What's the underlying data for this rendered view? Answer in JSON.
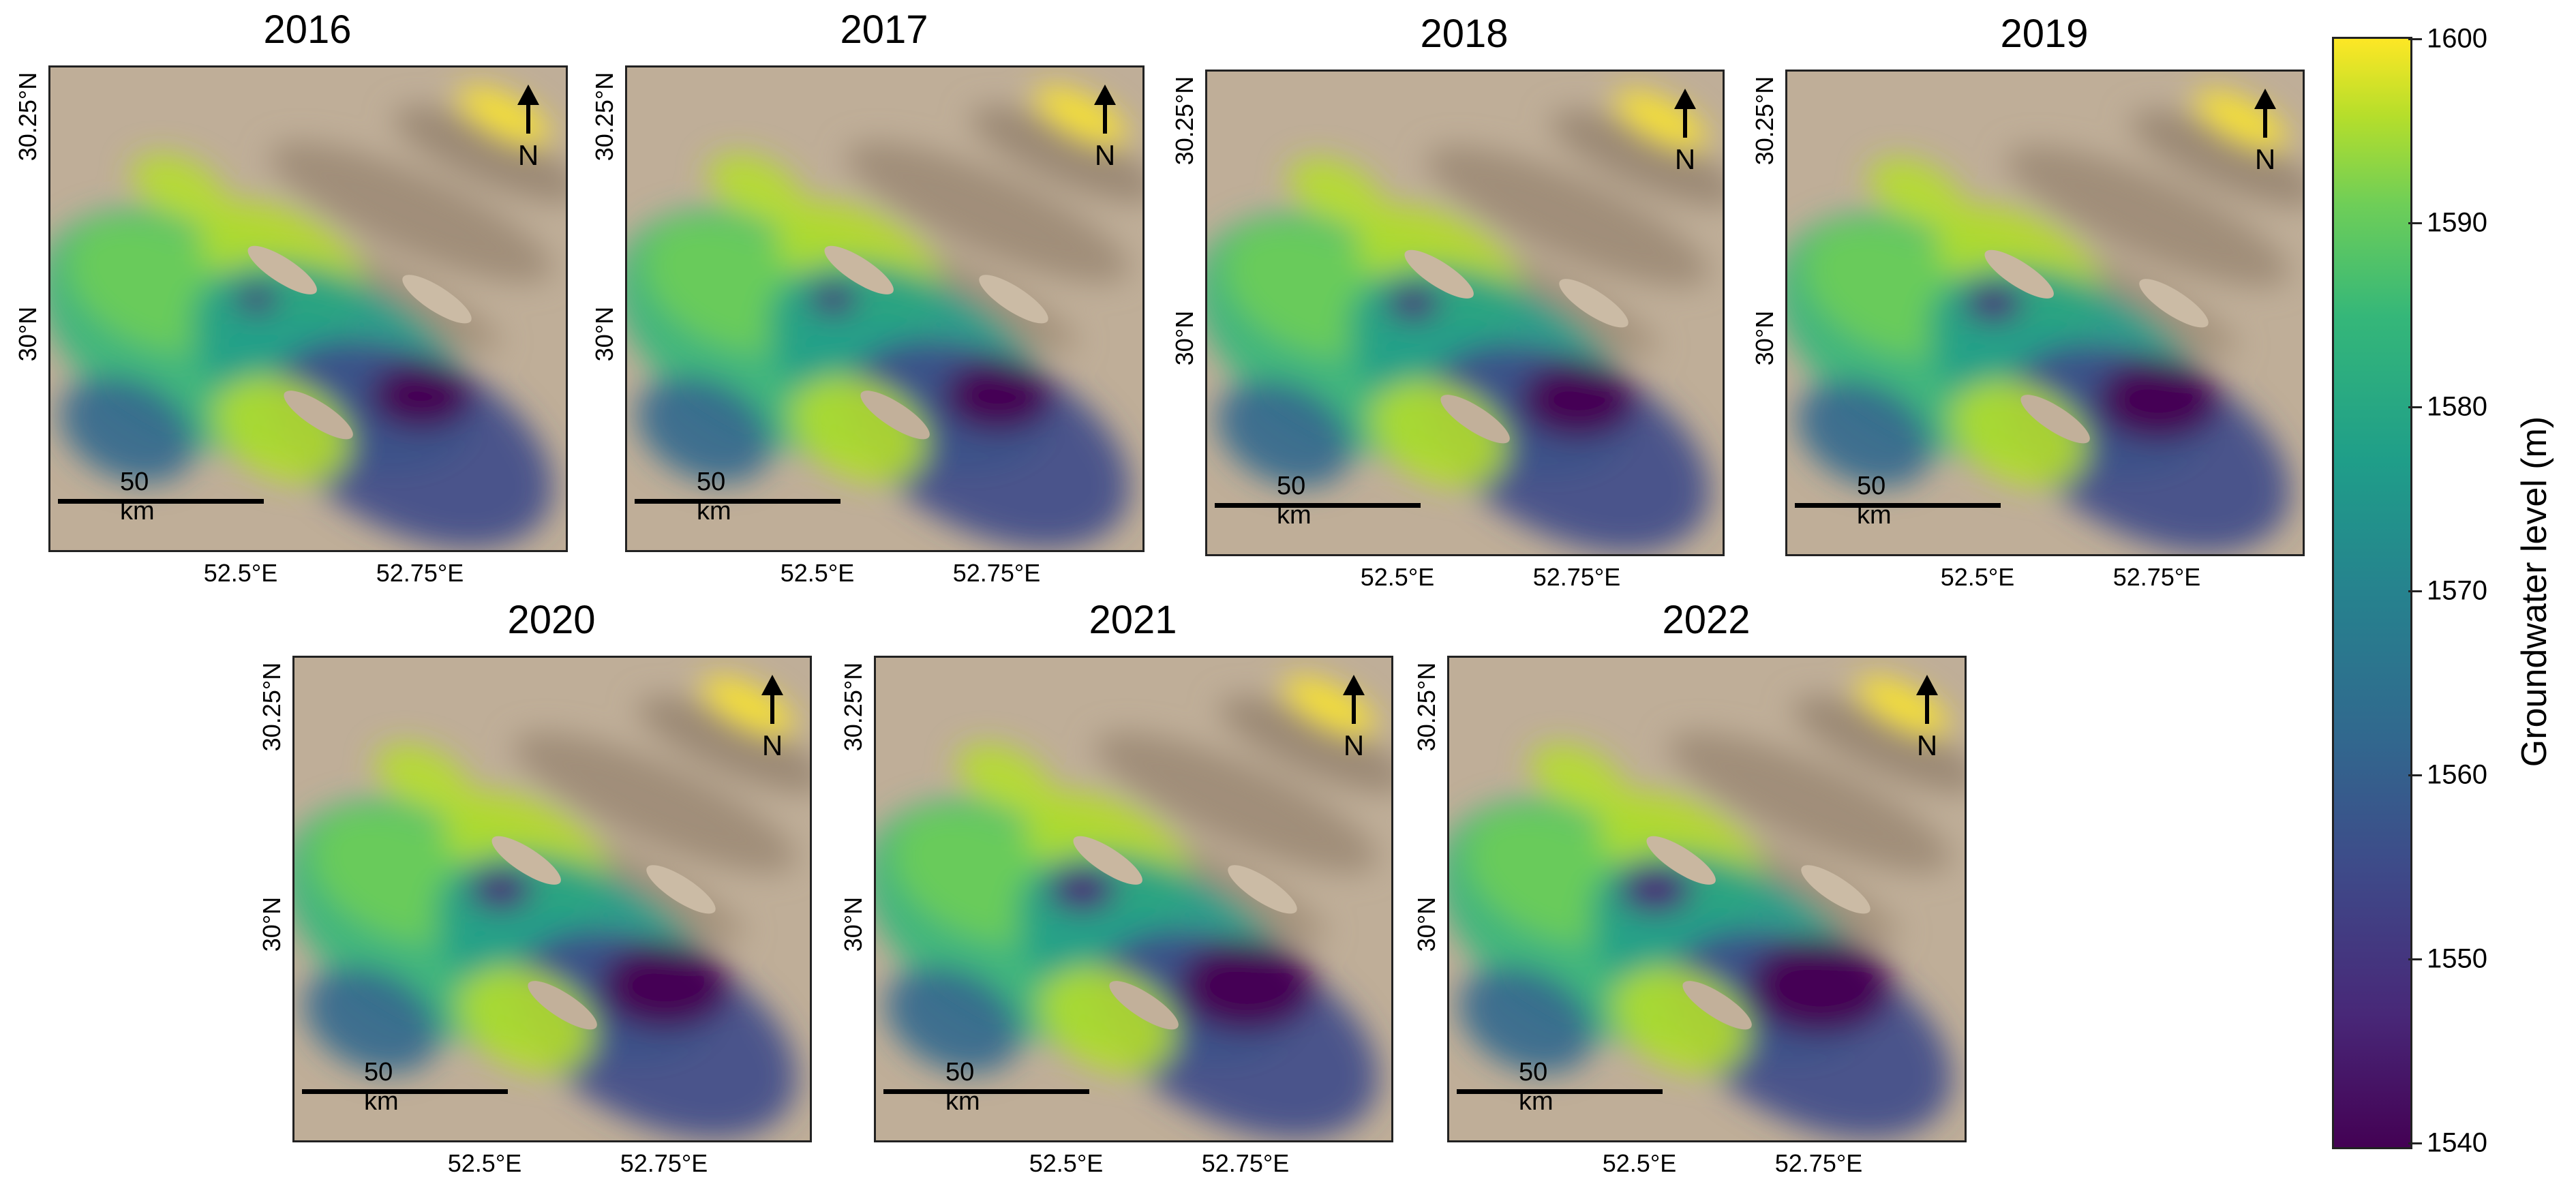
{
  "panels": [
    {
      "year": "2016"
    },
    {
      "year": "2017"
    },
    {
      "year": "2018"
    },
    {
      "year": "2019"
    },
    {
      "year": "2020"
    },
    {
      "year": "2021"
    },
    {
      "year": "2022"
    }
  ],
  "latitude_labels": [
    "30.25°N",
    "30°N"
  ],
  "longitude_labels": [
    "52.5°E",
    "52.75°E"
  ],
  "scale_bar_label": "50 km",
  "north_label": "N",
  "colorbar": {
    "title": "Groundwater level (m)",
    "ticks": [
      "1600",
      "1590",
      "1580",
      "1570",
      "1560",
      "1550",
      "1540"
    ],
    "min": 1540,
    "max": 1600,
    "colormap": "viridis",
    "colors": [
      "#440154",
      "#3e4a89",
      "#26828e",
      "#35b779",
      "#fde725"
    ]
  }
}
